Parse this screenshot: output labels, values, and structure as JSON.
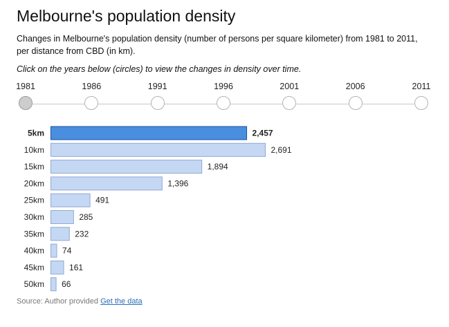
{
  "title": "Melbourne's population density",
  "subtitle": "Changes in Melbourne's population density (number of persons per square kilometer) from 1981 to 2011, per distance from CBD (in km).",
  "instruction": "Click on the years below (circles) to view the changes in density over time.",
  "timeline": {
    "years": [
      "1981",
      "1986",
      "1991",
      "1996",
      "2001",
      "2006",
      "2011"
    ],
    "selected": "1981"
  },
  "chart_data": {
    "type": "bar",
    "orientation": "horizontal",
    "categories": [
      "5km",
      "10km",
      "15km",
      "20km",
      "25km",
      "30km",
      "35km",
      "40km",
      "45km",
      "50km"
    ],
    "values": [
      2457,
      2691,
      1894,
      1396,
      491,
      285,
      232,
      74,
      161,
      66
    ],
    "value_labels": [
      "2,457",
      "2,691",
      "1,894",
      "1,396",
      "491",
      "285",
      "232",
      "74",
      "161",
      "66"
    ],
    "highlighted": "5km",
    "xlim": [
      0,
      2691
    ],
    "grid": false
  },
  "colors": {
    "bar_fill": "#c5d8f3",
    "bar_stroke": "#8fa8d2",
    "highlight_fill": "#4a8ee0",
    "highlight_stroke": "#1e4f9c"
  },
  "source": {
    "text": "Source: Author provided",
    "link": "Get the data"
  }
}
